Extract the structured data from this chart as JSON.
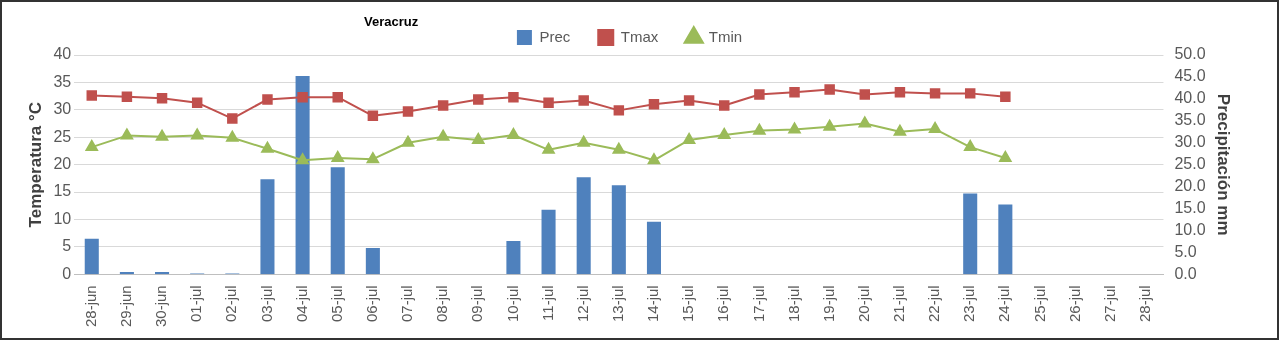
{
  "chart_data": {
    "type": "bar",
    "title": "Veracruz",
    "categories": [
      "28-jun",
      "29-jun",
      "30-jun",
      "01-jul",
      "02-jul",
      "03-jul",
      "04-jul",
      "05-jul",
      "06-jul",
      "07-jul",
      "08-jul",
      "09-jul",
      "10-jul",
      "11-jul",
      "12-jul",
      "13-jul",
      "14-jul",
      "15-jul",
      "16-jul",
      "17-jul",
      "18-jul",
      "19-jul",
      "20-jul",
      "21-jul",
      "22-jul",
      "23-jul",
      "24-jul",
      "25-jul",
      "26-jul",
      "27-jul",
      "28-jul"
    ],
    "series": [
      {
        "name": "Prec",
        "axis": "y2",
        "color": "#4f81bd",
        "values": [
          8.1,
          0.5,
          0.5,
          0.2,
          0.2,
          21.7,
          45.2,
          24.4,
          6.0,
          null,
          null,
          null,
          7.6,
          14.7,
          22.1,
          20.3,
          12.0,
          null,
          null,
          null,
          null,
          null,
          null,
          null,
          null,
          18.4,
          15.9,
          null,
          null,
          null,
          null
        ]
      },
      {
        "name": "Tmax",
        "type": "line",
        "marker": "square",
        "color": "#c0504d",
        "values": [
          32.6,
          32.4,
          32.1,
          31.3,
          28.4,
          31.9,
          32.3,
          32.3,
          28.9,
          29.7,
          30.8,
          31.9,
          32.3,
          31.3,
          31.7,
          29.9,
          31.0,
          31.7,
          30.8,
          32.8,
          33.2,
          33.7,
          32.8,
          33.2,
          33.0,
          33.0,
          32.4,
          null,
          null,
          null,
          null
        ]
      },
      {
        "name": "Tmin",
        "type": "line",
        "marker": "triangle",
        "color": "#9bbb59",
        "values": [
          23.2,
          25.3,
          25.1,
          25.3,
          24.9,
          22.9,
          20.8,
          21.2,
          21.0,
          24.0,
          25.1,
          24.5,
          25.4,
          22.7,
          24.0,
          22.7,
          20.8,
          24.5,
          25.4,
          26.2,
          26.4,
          26.9,
          27.5,
          26.0,
          26.5,
          23.2,
          21.2,
          null,
          null,
          null,
          null
        ]
      }
    ],
    "ylabel": "Temperatura °C",
    "y2label": "Precipitación mm",
    "ylim": [
      0,
      40
    ],
    "yticks": [
      0,
      5,
      10,
      15,
      20,
      25,
      30,
      35,
      40
    ],
    "y2lim": [
      0,
      50
    ],
    "y2ticks": [
      {
        "value": 0,
        "label": "0.0"
      },
      {
        "value": 5,
        "label": "5.0"
      },
      {
        "value": 10,
        "label": "10.0"
      },
      {
        "value": 15,
        "label": "15.0"
      },
      {
        "value": 20,
        "label": "20.0"
      },
      {
        "value": 25,
        "label": "25.0"
      },
      {
        "value": 30,
        "label": "30.0"
      },
      {
        "value": 35,
        "label": "35.0"
      },
      {
        "value": 40,
        "label": "40.0"
      },
      {
        "value": 45,
        "label": "45.0"
      },
      {
        "value": 50,
        "label": "50.0"
      }
    ],
    "grid": "y",
    "legend": "top",
    "line_style": "solid"
  }
}
